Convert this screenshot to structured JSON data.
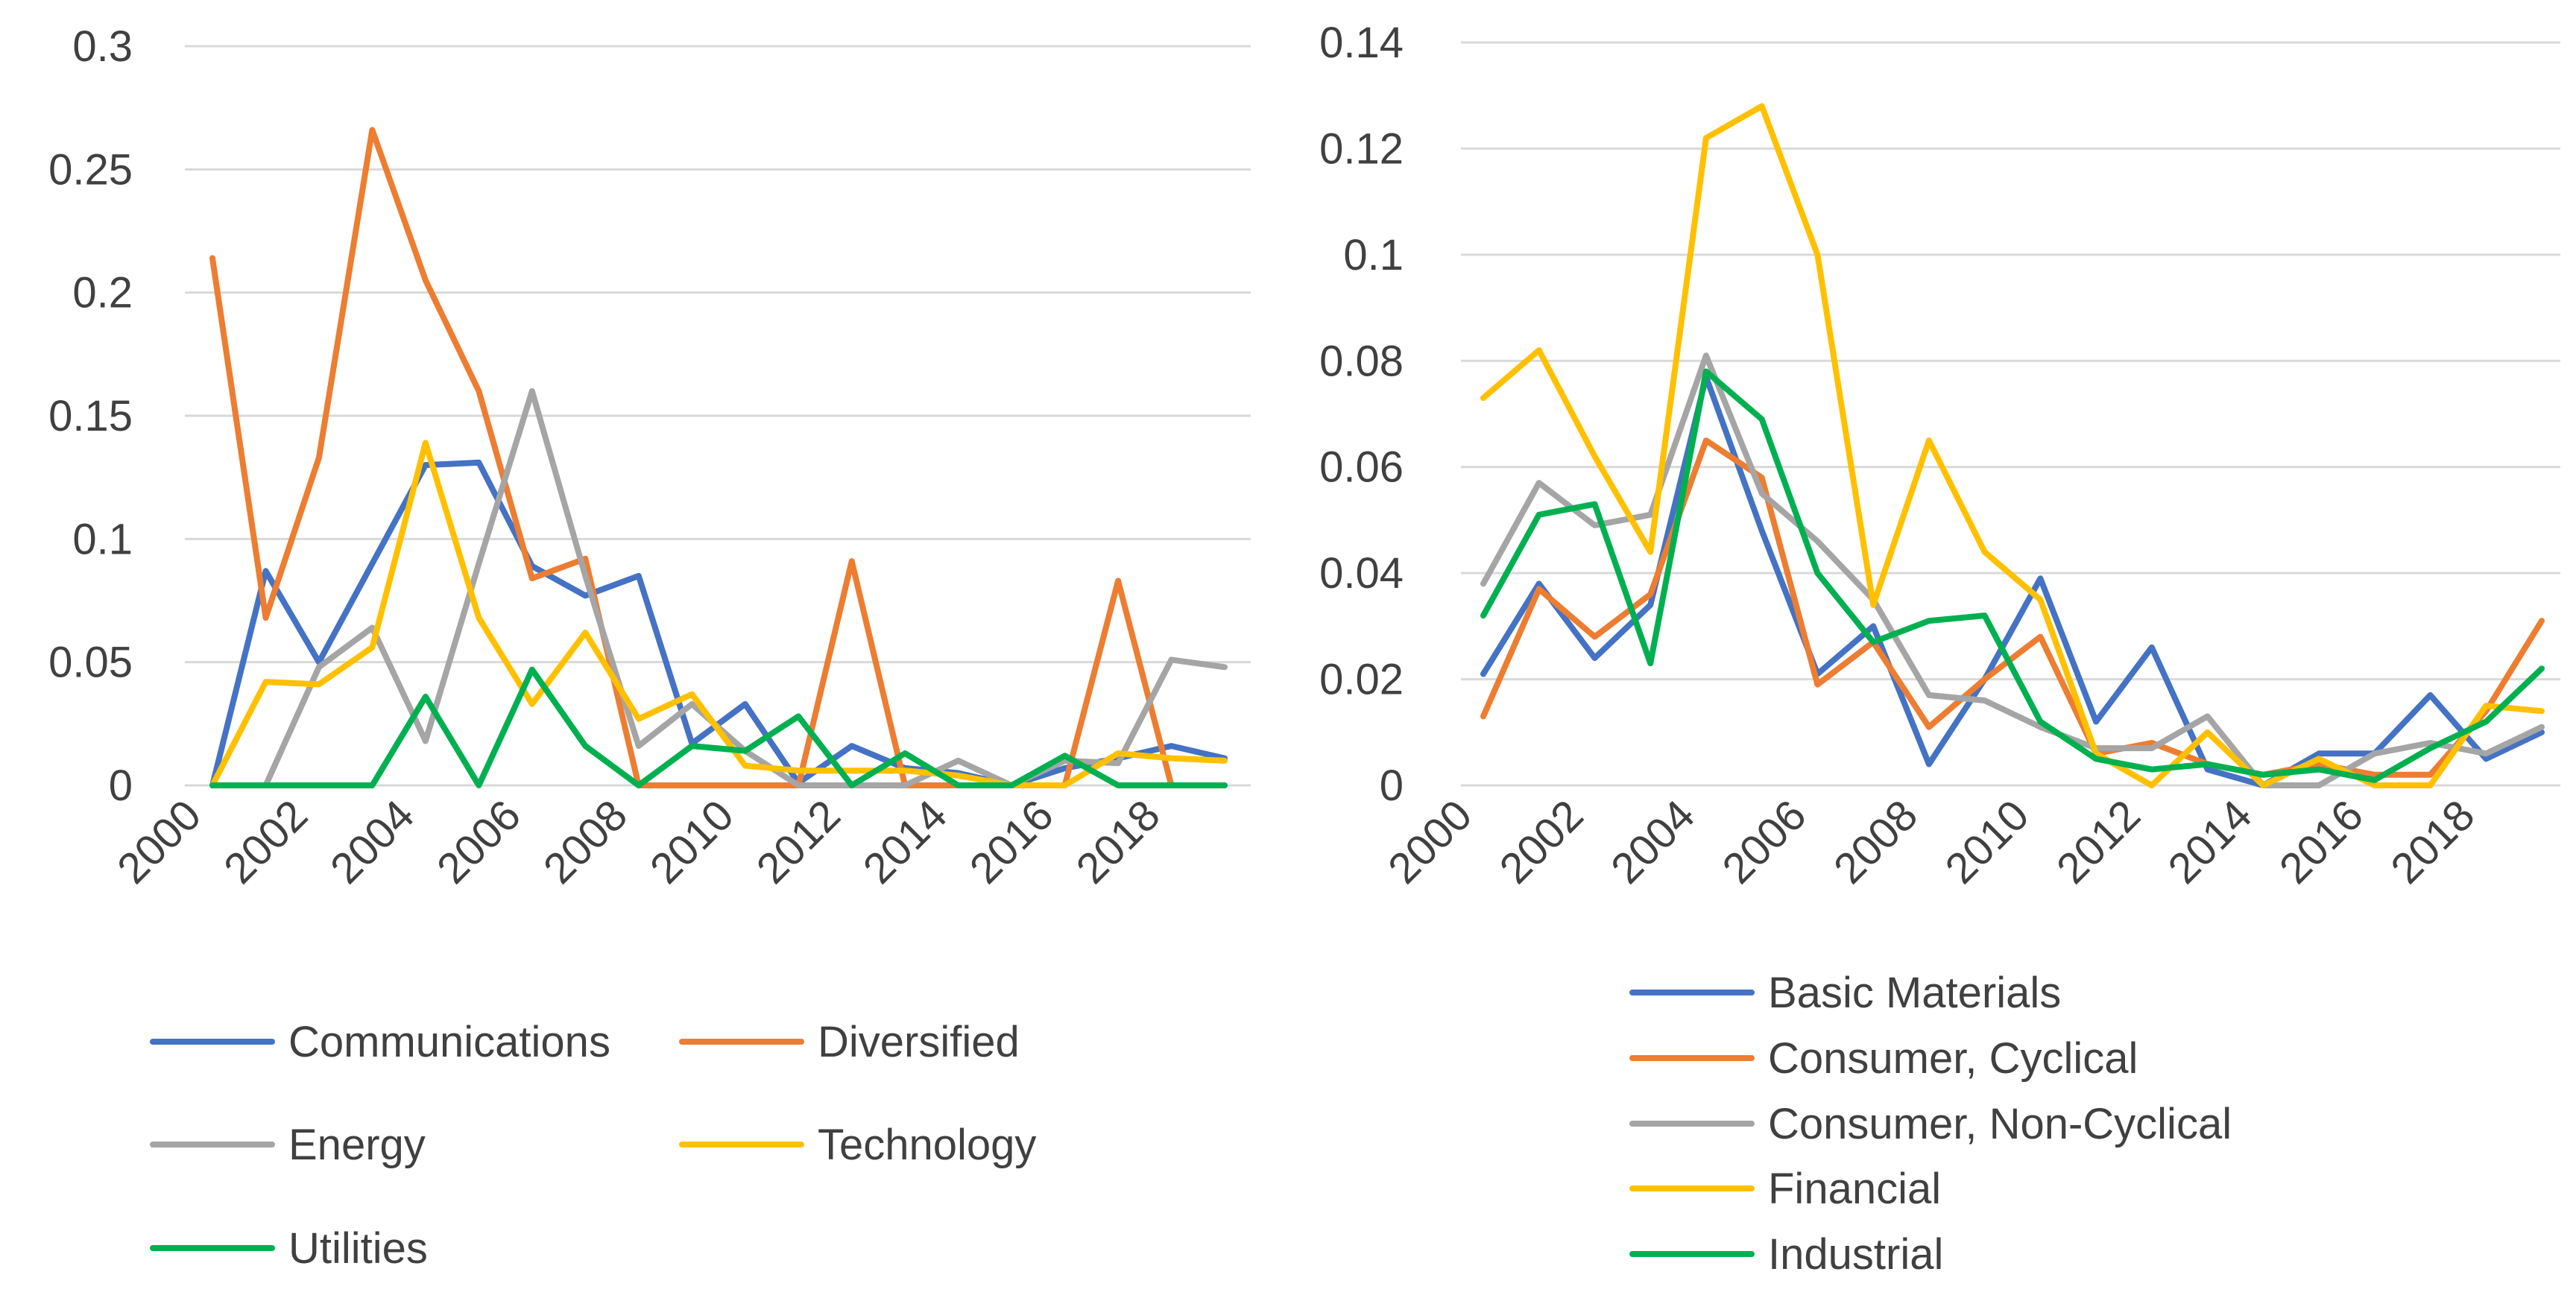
{
  "chart_data": [
    {
      "type": "line",
      "title": "",
      "xlabel": "",
      "ylabel": "",
      "x": [
        2000,
        2001,
        2002,
        2003,
        2004,
        2005,
        2006,
        2007,
        2008,
        2009,
        2010,
        2011,
        2012,
        2013,
        2014,
        2015,
        2016,
        2017,
        2018,
        2019
      ],
      "x_tick_labels": [
        "2000",
        "2002",
        "2004",
        "2006",
        "2008",
        "2010",
        "2012",
        "2014",
        "2016",
        "2018"
      ],
      "y_tick_labels": [
        "0",
        "0.05",
        "0.1",
        "0.15",
        "0.2",
        "0.25",
        "0.3"
      ],
      "ylim": [
        0,
        0.3
      ],
      "grid": true,
      "legend_position": "bottom",
      "series": [
        {
          "name": "Communications",
          "color": "#4472c4",
          "values": [
            0,
            0.087,
            0.05,
            0.09,
            0.13,
            0.131,
            0.089,
            0.077,
            0.085,
            0.017,
            0.033,
            0.001,
            0.016,
            0.007,
            0.005,
            0,
            0.007,
            0.011,
            0.016,
            0.011
          ]
        },
        {
          "name": "Diversified",
          "color": "#ed7d31",
          "values": [
            0.214,
            0.068,
            0.133,
            0.266,
            0.205,
            0.16,
            0.084,
            0.092,
            0,
            0,
            0,
            0,
            0.091,
            0,
            0,
            0,
            0,
            0.083,
            0,
            0
          ]
        },
        {
          "name": "Energy",
          "color": "#a5a5a5",
          "values": [
            0,
            0,
            0.048,
            0.064,
            0.018,
            0.09,
            0.16,
            0.085,
            0.016,
            0.033,
            0.014,
            0,
            0,
            0,
            0.01,
            0,
            0.01,
            0.009,
            0.051,
            0.048
          ]
        },
        {
          "name": "Technology",
          "color": "#ffc000",
          "values": [
            0,
            0.042,
            0.041,
            0.056,
            0.139,
            0.068,
            0.033,
            0.062,
            0.027,
            0.037,
            0.008,
            0.006,
            0.006,
            0.006,
            0.004,
            0,
            0,
            0.013,
            0.011,
            0.01
          ]
        },
        {
          "name": "Utilities",
          "color": "#00b050",
          "values": [
            0,
            0,
            0,
            0,
            0.036,
            0,
            0.047,
            0.016,
            0,
            0.016,
            0.014,
            0.028,
            0,
            0.013,
            0,
            0,
            0.012,
            0,
            0,
            0
          ]
        }
      ]
    },
    {
      "type": "line",
      "title": "",
      "xlabel": "",
      "ylabel": "",
      "x": [
        2000,
        2001,
        2002,
        2003,
        2004,
        2005,
        2006,
        2007,
        2008,
        2009,
        2010,
        2011,
        2012,
        2013,
        2014,
        2015,
        2016,
        2017,
        2018,
        2019
      ],
      "x_tick_labels": [
        "2000",
        "2002",
        "2004",
        "2006",
        "2008",
        "2010",
        "2012",
        "2014",
        "2016",
        "2018"
      ],
      "y_tick_labels": [
        "0",
        "0.02",
        "0.04",
        "0.06",
        "0.08",
        "0.1",
        "0.12",
        "0.14"
      ],
      "ylim": [
        0,
        0.14
      ],
      "grid": true,
      "legend_position": "bottom",
      "series": [
        {
          "name": "Basic Materials",
          "color": "#4472c4",
          "values": [
            0.021,
            0.038,
            0.024,
            0.034,
            0.077,
            0.048,
            0.021,
            0.03,
            0.004,
            0.02,
            0.039,
            0.012,
            0.026,
            0.003,
            0,
            0.006,
            0.006,
            0.017,
            0.005,
            0.01
          ]
        },
        {
          "name": "Consumer, Cyclical",
          "color": "#ed7d31",
          "values": [
            0.013,
            0.037,
            0.028,
            0.036,
            0.065,
            0.058,
            0.019,
            0.027,
            0.011,
            0.02,
            0.028,
            0.006,
            0.008,
            0.004,
            0.002,
            0.004,
            0.002,
            0.002,
            0.014,
            0.031
          ]
        },
        {
          "name": "Consumer, Non-Cyclical",
          "color": "#a5a5a5",
          "values": [
            0.038,
            0.057,
            0.049,
            0.051,
            0.081,
            0.055,
            0.046,
            0.035,
            0.017,
            0.016,
            0.011,
            0.007,
            0.007,
            0.013,
            0,
            0,
            0.006,
            0.008,
            0.006,
            0.011
          ]
        },
        {
          "name": "Financial",
          "color": "#ffc000",
          "values": [
            0.073,
            0.082,
            0.062,
            0.044,
            0.122,
            0.128,
            0.1,
            0.034,
            0.065,
            0.044,
            0.035,
            0.006,
            0,
            0.01,
            0,
            0.005,
            0,
            0,
            0.015,
            0.014
          ]
        },
        {
          "name": "Industrial",
          "color": "#00b050",
          "values": [
            0.032,
            0.051,
            0.053,
            0.023,
            0.078,
            0.069,
            0.04,
            0.027,
            0.031,
            0.032,
            0.012,
            0.005,
            0.003,
            0.004,
            0.002,
            0.003,
            0.001,
            0.007,
            0.012,
            0.022
          ]
        }
      ]
    }
  ]
}
